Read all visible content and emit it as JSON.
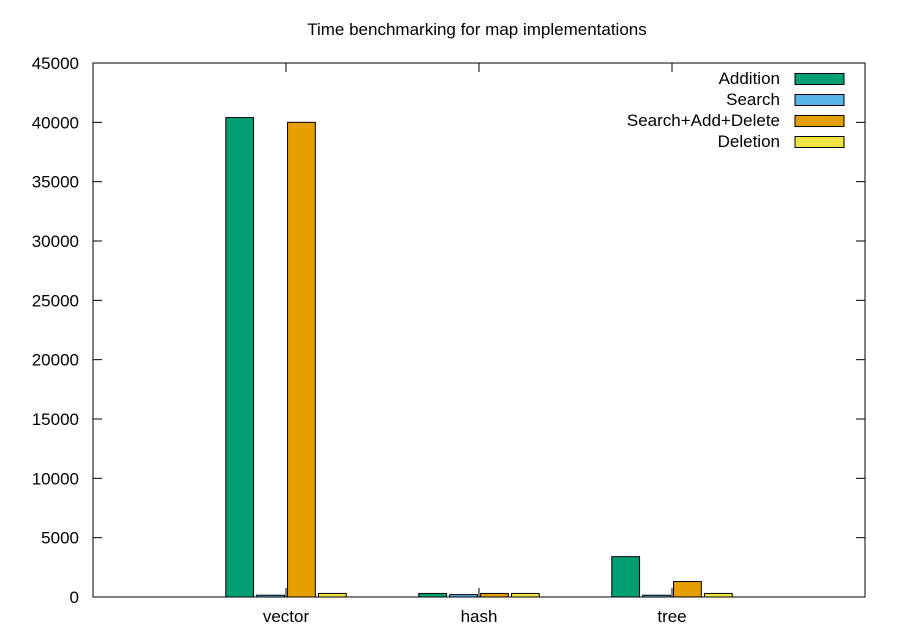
{
  "chart_data": {
    "type": "bar",
    "title": "Time benchmarking for map implementations",
    "xlabel": "",
    "ylabel": "",
    "categories": [
      "vector",
      "hash",
      "tree"
    ],
    "ylim": [
      0,
      45000
    ],
    "yticks": [
      0,
      5000,
      10000,
      15000,
      20000,
      25000,
      30000,
      35000,
      40000,
      45000
    ],
    "ytick_labels": [
      "0",
      "5000",
      "10000",
      "15000",
      "20000",
      "25000",
      "30000",
      "35000",
      "40000",
      "45000"
    ],
    "legend_position": "top-right",
    "grid": false,
    "series": [
      {
        "name": "Addition",
        "color": "#009e73",
        "values": [
          40400,
          300,
          3400
        ]
      },
      {
        "name": "Search",
        "color": "#56b4e9",
        "values": [
          150,
          200,
          150
        ]
      },
      {
        "name": "Search+Add+Delete",
        "color": "#e69f00",
        "values": [
          40000,
          300,
          1300
        ]
      },
      {
        "name": "Deletion",
        "color": "#f0e442",
        "values": [
          300,
          300,
          300
        ]
      }
    ]
  }
}
